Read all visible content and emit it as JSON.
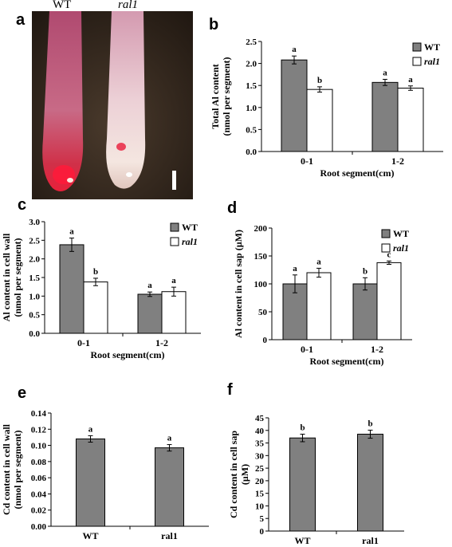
{
  "panels": {
    "a": "a",
    "b": "b",
    "c": "c",
    "d": "d",
    "e": "e",
    "f": "f"
  },
  "photo": {
    "label_left": "WT",
    "label_right": "ral1"
  },
  "colors": {
    "wt_bar": "#808080",
    "ral1_bar": "#ffffff",
    "stroke": "#000000"
  },
  "chart_data": [
    {
      "id": "b",
      "type": "bar",
      "categories": [
        "0-1",
        "1-2"
      ],
      "series": [
        {
          "name": "WT",
          "values": [
            2.08,
            1.57
          ],
          "errors": [
            0.09,
            0.07
          ],
          "letters": [
            "a",
            "a"
          ]
        },
        {
          "name": "ral1",
          "values": [
            1.41,
            1.44
          ],
          "errors": [
            0.06,
            0.05
          ],
          "letters": [
            "b",
            "a"
          ]
        }
      ],
      "xlabel": "Root segment(cm)",
      "ylabel": [
        "Total Al content",
        "(nmol per segment)"
      ],
      "ylim": [
        0,
        2.5
      ],
      "yticks": [
        "0.0",
        "0.5",
        "1.0",
        "1.5",
        "2.0",
        "2.5"
      ],
      "legend": "top-right"
    },
    {
      "id": "c",
      "type": "bar",
      "categories": [
        "0-1",
        "1-2"
      ],
      "series": [
        {
          "name": "WT",
          "values": [
            2.38,
            1.05
          ],
          "errors": [
            0.18,
            0.06
          ],
          "letters": [
            "a",
            "a"
          ]
        },
        {
          "name": "ral1",
          "values": [
            1.38,
            1.12
          ],
          "errors": [
            0.1,
            0.12
          ],
          "letters": [
            "b",
            "a"
          ]
        }
      ],
      "xlabel": "Root segment(cm)",
      "ylabel": [
        "Al content in cell wall",
        "(nmol per segment)"
      ],
      "ylim": [
        0,
        3.0
      ],
      "yticks": [
        "0.0",
        "0.5",
        "1.0",
        "1.5",
        "2.0",
        "2.5",
        "3.0"
      ],
      "legend": "top-right"
    },
    {
      "id": "d",
      "type": "bar",
      "categories": [
        "0-1",
        "1-2"
      ],
      "series": [
        {
          "name": "WT",
          "values": [
            100,
            100
          ],
          "errors": [
            16,
            11
          ],
          "letters": [
            "a",
            "b"
          ]
        },
        {
          "name": "ral1",
          "values": [
            120,
            138
          ],
          "errors": [
            8,
            3
          ],
          "letters": [
            "a",
            "c"
          ]
        }
      ],
      "xlabel": "Root segment(cm)",
      "ylabel": [
        "Al content in cell sap (µM)"
      ],
      "ylim": [
        0,
        200
      ],
      "yticks": [
        "0",
        "50",
        "100",
        "150",
        "200"
      ],
      "legend": "top-right"
    },
    {
      "id": "e",
      "type": "bar",
      "categories": [
        "WT",
        "ral1"
      ],
      "series": [
        {
          "name": "",
          "values": [
            0.108,
            0.097
          ],
          "errors": [
            0.004,
            0.004
          ],
          "letters": [
            "a",
            "a"
          ]
        }
      ],
      "xlabel": "",
      "ylabel": [
        "Cd content in cell wall",
        "(nmol per segment)"
      ],
      "ylim": [
        0,
        0.14
      ],
      "yticks": [
        "0.00",
        "0.02",
        "0.04",
        "0.06",
        "0.08",
        "0.10",
        "0.12",
        "0.14"
      ],
      "legend": "none"
    },
    {
      "id": "f",
      "type": "bar",
      "categories": [
        "WT",
        "ral1"
      ],
      "series": [
        {
          "name": "",
          "values": [
            37,
            38.5
          ],
          "errors": [
            1.5,
            1.6
          ],
          "letters": [
            "b",
            "b"
          ]
        }
      ],
      "xlabel": "",
      "ylabel": [
        "Cd content in cell sap",
        "(µM)"
      ],
      "ylim": [
        0,
        45
      ],
      "yticks": [
        "0",
        "5",
        "10",
        "15",
        "20",
        "25",
        "30",
        "35",
        "40",
        "45"
      ],
      "legend": "none"
    }
  ]
}
